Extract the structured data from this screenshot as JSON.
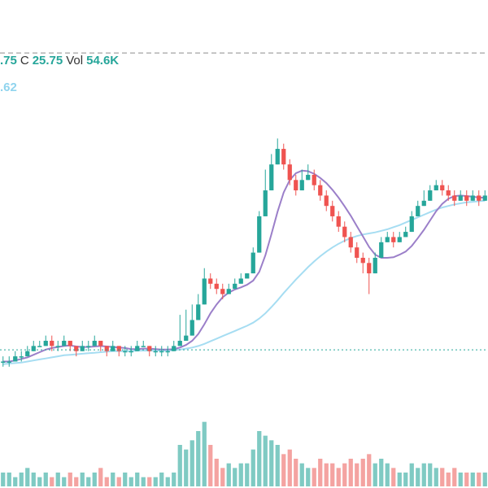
{
  "legend": {
    "open_fragment": ".75",
    "close_label": "C",
    "close_value": "25.75",
    "vol_label": "Vol",
    "vol_value": "54.6K",
    "ma_fragment": ".62"
  },
  "colors": {
    "up": "#26a69a",
    "down": "#ef5350",
    "up_volume": "#7fcac3",
    "down_volume": "#f4a3a1",
    "ma_fast": "#9b7fc9",
    "ma_slow": "#a6ddf2",
    "price_line": "#26a69a",
    "crosshair": "#8c8c8c"
  },
  "chart_data": {
    "type": "candlestick",
    "candles": [
      [
        17,
        17,
        16,
        18,
        3
      ],
      [
        17,
        17,
        16,
        18,
        3
      ],
      [
        17,
        18,
        17,
        19,
        2
      ],
      [
        18,
        18,
        17,
        19,
        3
      ],
      [
        18,
        19,
        18,
        20,
        4
      ],
      [
        19,
        20,
        19,
        21,
        3
      ],
      [
        20,
        20,
        20,
        21,
        2
      ],
      [
        20,
        21,
        20,
        22,
        3
      ],
      [
        21,
        20,
        19,
        22,
        2
      ],
      [
        20,
        20,
        19,
        21,
        3
      ],
      [
        20,
        21,
        20,
        22,
        2
      ],
      [
        21,
        20,
        19,
        21,
        3
      ],
      [
        20,
        19,
        18,
        20,
        2
      ],
      [
        19,
        20,
        19,
        21,
        3
      ],
      [
        20,
        20,
        19,
        21,
        2
      ],
      [
        20,
        21,
        20,
        22,
        3
      ],
      [
        21,
        20,
        19,
        21,
        4
      ],
      [
        20,
        19,
        18,
        20,
        2
      ],
      [
        19,
        20,
        19,
        21,
        3
      ],
      [
        20,
        19,
        18,
        20,
        2
      ],
      [
        19,
        19,
        18,
        20,
        3
      ],
      [
        19,
        19,
        18,
        20,
        2
      ],
      [
        19,
        20,
        19,
        21,
        3
      ],
      [
        20,
        20,
        20,
        21,
        2
      ],
      [
        20,
        19,
        18,
        20,
        2
      ],
      [
        19,
        19,
        18,
        20,
        2
      ],
      [
        19,
        19,
        18,
        20,
        3
      ],
      [
        19,
        19,
        18,
        20,
        2
      ],
      [
        19,
        20,
        19,
        21,
        3
      ],
      [
        20,
        21,
        20,
        26,
        9
      ],
      [
        21,
        22,
        21,
        27,
        8
      ],
      [
        22,
        25,
        22,
        28,
        10
      ],
      [
        25,
        28,
        25,
        30,
        12
      ],
      [
        28,
        33,
        28,
        35,
        14
      ],
      [
        33,
        32,
        31,
        34,
        9
      ],
      [
        32,
        31,
        30,
        33,
        6
      ],
      [
        31,
        30,
        29,
        32,
        4
      ],
      [
        30,
        31,
        30,
        32,
        5
      ],
      [
        31,
        32,
        31,
        33,
        4
      ],
      [
        32,
        33,
        32,
        34,
        5
      ],
      [
        33,
        34,
        33,
        34,
        5
      ],
      [
        34,
        38,
        34,
        39,
        8
      ],
      [
        38,
        45,
        38,
        46,
        12
      ],
      [
        45,
        50,
        45,
        54,
        11
      ],
      [
        50,
        55,
        50,
        57,
        10
      ],
      [
        55,
        58,
        55,
        60,
        9
      ],
      [
        58,
        55,
        54,
        59,
        7
      ],
      [
        55,
        52,
        51,
        56,
        8
      ],
      [
        52,
        50,
        49,
        53,
        6
      ],
      [
        50,
        52,
        50,
        54,
        5
      ],
      [
        52,
        53,
        52,
        55,
        4
      ],
      [
        53,
        51,
        50,
        54,
        4
      ],
      [
        51,
        49,
        48,
        52,
        6
      ],
      [
        49,
        47,
        46,
        50,
        5
      ],
      [
        47,
        45,
        44,
        48,
        5
      ],
      [
        45,
        43,
        42,
        46,
        4
      ],
      [
        43,
        41,
        40,
        44,
        5
      ],
      [
        41,
        39,
        38,
        42,
        6
      ],
      [
        39,
        37,
        36,
        40,
        5
      ],
      [
        37,
        36,
        34,
        38,
        6
      ],
      [
        36,
        34,
        30,
        37,
        7
      ],
      [
        34,
        37,
        34,
        38,
        5
      ],
      [
        37,
        40,
        37,
        41,
        6
      ],
      [
        40,
        41,
        40,
        42,
        5
      ],
      [
        41,
        40,
        39,
        42,
        4
      ],
      [
        40,
        41,
        40,
        42,
        3
      ],
      [
        41,
        42,
        41,
        43,
        3
      ],
      [
        42,
        45,
        42,
        46,
        5
      ],
      [
        45,
        47,
        45,
        48,
        4
      ],
      [
        47,
        48,
        47,
        50,
        5
      ],
      [
        48,
        50,
        48,
        51,
        5
      ],
      [
        50,
        51,
        50,
        52,
        4
      ],
      [
        51,
        50,
        49,
        52,
        4
      ],
      [
        50,
        49,
        48,
        51,
        3
      ],
      [
        49,
        48,
        47,
        50,
        4
      ],
      [
        48,
        49,
        48,
        50,
        3
      ],
      [
        49,
        48,
        47,
        50,
        3
      ],
      [
        48,
        49,
        48,
        50,
        3
      ],
      [
        49,
        48,
        47,
        50,
        3
      ],
      [
        48,
        49,
        48,
        50,
        3
      ]
    ],
    "ma_fast": [
      17,
      17,
      17.2,
      17.5,
      17.8,
      18.3,
      18.8,
      19.3,
      19.6,
      19.8,
      20,
      20.1,
      19.9,
      19.8,
      19.8,
      19.9,
      20,
      19.9,
      19.8,
      19.7,
      19.6,
      19.4,
      19.4,
      19.5,
      19.5,
      19.4,
      19.3,
      19.3,
      19.4,
      19.7,
      20.2,
      21,
      22.3,
      24.2,
      26.3,
      28,
      29.4,
      30.3,
      30.9,
      31.3,
      31.8,
      32.6,
      34.3,
      37.5,
      41.6,
      45.9,
      49.6,
      52,
      53.3,
      53.8,
      53.7,
      53.2,
      52.4,
      51.4,
      50.1,
      48.6,
      46.9,
      45.1,
      43.1,
      41.1,
      39.1,
      37.6,
      37,
      37,
      37.1,
      37.6,
      38.2,
      39.3,
      40.8,
      42.4,
      44.2,
      46,
      47.4,
      48.4,
      48.9,
      49,
      48.9,
      48.8,
      48.6,
      48.6
    ],
    "ma_slow": [
      16.5,
      16.6,
      16.7,
      16.8,
      17,
      17.2,
      17.4,
      17.6,
      17.8,
      18,
      18.2,
      18.3,
      18.4,
      18.5,
      18.6,
      18.7,
      18.8,
      18.9,
      19,
      19,
      19,
      19,
      19.1,
      19.1,
      19.1,
      19.1,
      19.1,
      19.1,
      19.2,
      19.3,
      19.5,
      19.7,
      20,
      20.4,
      20.9,
      21.4,
      21.9,
      22.4,
      22.9,
      23.4,
      23.9,
      24.5,
      25.3,
      26.3,
      27.5,
      28.8,
      30.2,
      31.5,
      32.8,
      34,
      35.2,
      36.3,
      37.3,
      38.2,
      39,
      39.7,
      40.3,
      40.8,
      41.2,
      41.5,
      41.7,
      41.9,
      42.2,
      42.5,
      42.9,
      43.3,
      43.8,
      44.3,
      44.8,
      45.3,
      45.8,
      46.3,
      46.7,
      47,
      47.3,
      47.5,
      47.7,
      47.8,
      47.9,
      48
    ],
    "price_line": 19.25,
    "crosshair_y": 76.5,
    "ylim": [
      13,
      82
    ],
    "volume_max": 30
  }
}
